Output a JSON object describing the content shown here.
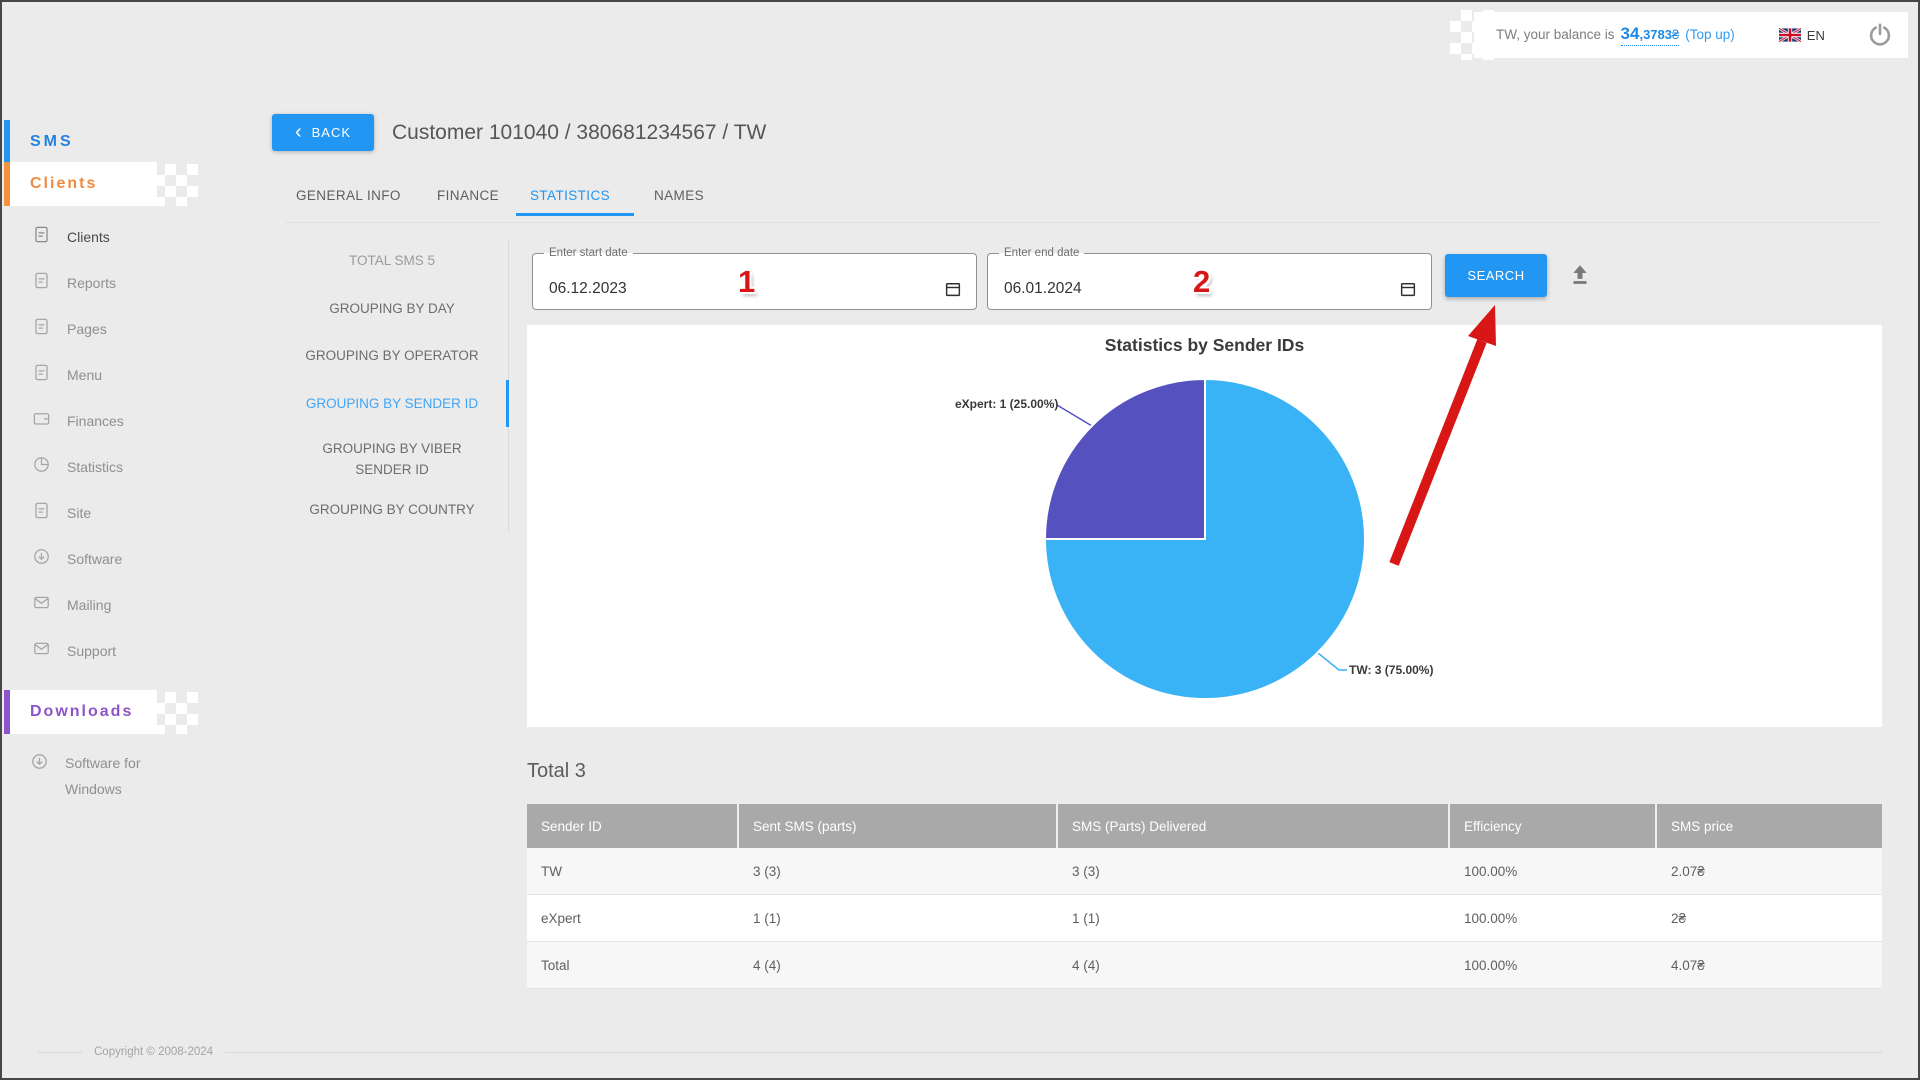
{
  "topbar": {
    "balance_prefix": "TW, your balance is",
    "balance_int": "34",
    "balance_frac": ",3783",
    "balance_currency": "₴",
    "topup_label": "(Top up)",
    "language": "EN"
  },
  "sidebar": {
    "sections": [
      {
        "label": "SMS",
        "color": "#2583e0"
      },
      {
        "label": "Clients",
        "color": "#ef8b41"
      },
      {
        "label": "Downloads",
        "color": "#8d55c9"
      }
    ],
    "items": [
      {
        "label": "Clients",
        "icon": "document-icon",
        "active": true
      },
      {
        "label": "Reports",
        "icon": "document-icon"
      },
      {
        "label": "Pages",
        "icon": "document-icon"
      },
      {
        "label": "Menu",
        "icon": "document-icon"
      },
      {
        "label": "Finances",
        "icon": "wallet-icon"
      },
      {
        "label": "Statistics",
        "icon": "pie-icon"
      },
      {
        "label": "Site",
        "icon": "document-icon"
      },
      {
        "label": "Software",
        "icon": "download-icon"
      },
      {
        "label": "Mailing",
        "icon": "envelope-icon"
      },
      {
        "label": "Support",
        "icon": "envelope-icon"
      }
    ],
    "download_items": [
      {
        "label": "Software for Windows",
        "icon": "download-icon"
      }
    ]
  },
  "header": {
    "back_chevron": "‹",
    "back_label": "BACK",
    "title": "Customer 101040 / 380681234567 / TW"
  },
  "tabs": [
    {
      "label": "GENERAL INFO"
    },
    {
      "label": "FINANCE"
    },
    {
      "label": "STATISTICS",
      "active": true
    },
    {
      "label": "NAMES"
    }
  ],
  "grouping": {
    "total_label": "TOTAL SMS 5",
    "items": [
      {
        "label": "GROUPING BY DAY"
      },
      {
        "label": "GROUPING BY OPERATOR"
      },
      {
        "label": "GROUPING BY SENDER ID",
        "active": true
      },
      {
        "label": "GROUPING BY VIBER SENDER ID"
      },
      {
        "label": "GROUPING BY COUNTRY"
      }
    ]
  },
  "filters": {
    "start": {
      "label": "Enter start date",
      "value": "06.12.2023"
    },
    "end": {
      "label": "Enter end date",
      "value": "06.01.2024"
    },
    "search_label": "SEARCH"
  },
  "annotations": {
    "color": "#d81616",
    "step1": "1",
    "step2": "2"
  },
  "chart_data": {
    "type": "pie",
    "title": "Statistics by Sender IDs",
    "total": 4,
    "slices": [
      {
        "label": "TW",
        "value": 3,
        "percent": "75.00%",
        "color": "#3ab2f6",
        "callout": "TW: 3 (75.00%)"
      },
      {
        "label": "eXpert",
        "value": 1,
        "percent": "25.00%",
        "color": "#5552c0",
        "callout": "eXpert: 1 (25.00%)"
      }
    ],
    "start_angle_deg": 0,
    "direction": "clockwise",
    "legend": "callout-labels"
  },
  "summary": {
    "total_label": "Total 3"
  },
  "table": {
    "headers": [
      "Sender ID",
      "Sent SMS (parts)",
      "SMS (Parts) Delivered",
      "Efficiency",
      "SMS price"
    ],
    "rows": [
      [
        "TW",
        "3 (3)",
        "3 (3)",
        "100.00%",
        "2.07₴"
      ],
      [
        "eXpert",
        "1 (1)",
        "1 (1)",
        "100.00%",
        "2₴"
      ],
      [
        "Total",
        "4 (4)",
        "4 (4)",
        "100.00%",
        "4.07₴"
      ]
    ]
  },
  "footer": {
    "copyright": "Copyright © 2008-2024"
  }
}
